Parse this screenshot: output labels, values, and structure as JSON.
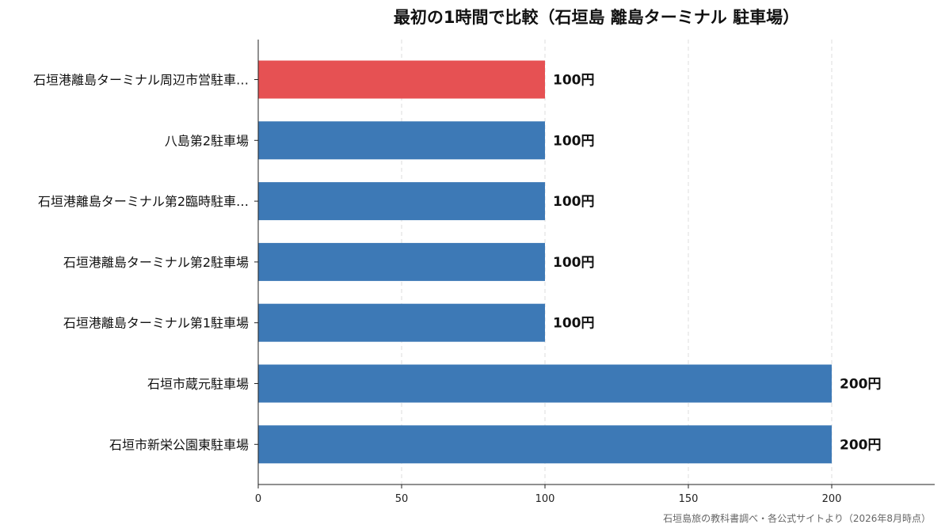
{
  "chart_data": {
    "type": "bar",
    "orientation": "horizontal",
    "title": "最初の1時間で比較（石垣島 離島ターミナル 駐車場）",
    "categories": [
      "石垣港離島ターミナル周辺市営駐車…",
      "八島第2駐車場",
      "石垣港離島ターミナル第2臨時駐車…",
      "石垣港離島ターミナル第2駐車場",
      "石垣港離島ターミナル第1駐車場",
      "石垣市蔵元駐車場",
      "石垣市新栄公園東駐車場"
    ],
    "values": [
      100,
      100,
      100,
      100,
      100,
      200,
      200
    ],
    "data_labels": [
      "100円",
      "100円",
      "100円",
      "100円",
      "100円",
      "200円",
      "200円"
    ],
    "highlight_index": 0,
    "highlight_color": "#e65153",
    "bar_color": "#3d79b6",
    "x_ticks": [
      0,
      50,
      100,
      150,
      200
    ],
    "xlim": [
      0,
      236
    ],
    "xlabel": "",
    "ylabel": "",
    "grid": "x-dashed",
    "legend": "none"
  },
  "source_note": "石垣島旅の教科書調べ・各公式サイトより（2026年8月時点）"
}
